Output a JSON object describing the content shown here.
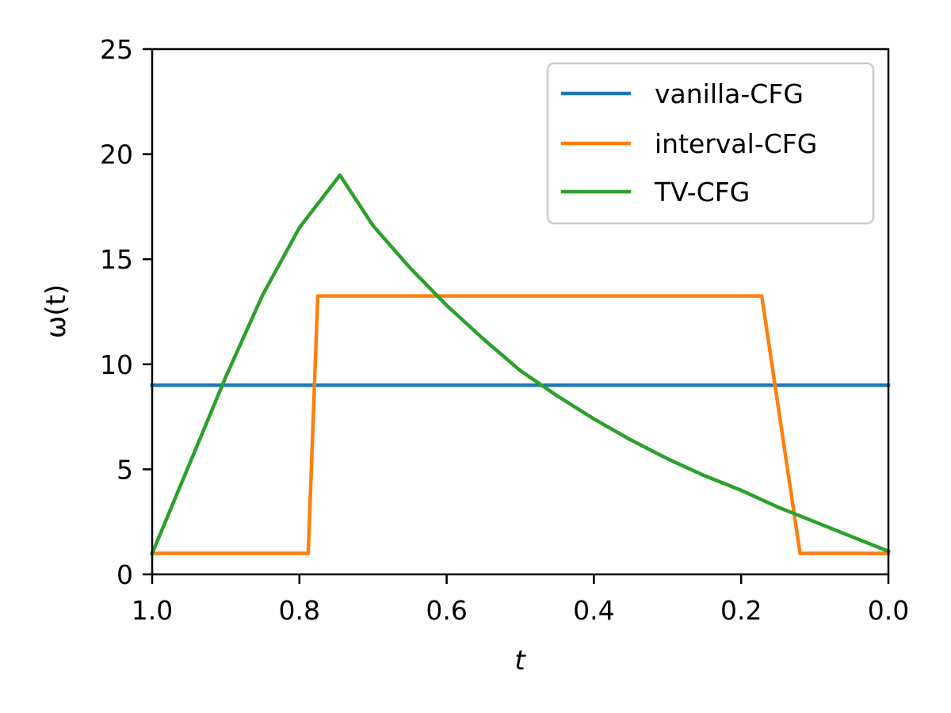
{
  "chart_data": {
    "type": "line",
    "title": "",
    "xlabel": "t",
    "ylabel": "ω(t)",
    "xlim": [
      1.0,
      0.0
    ],
    "ylim": [
      0,
      25
    ],
    "x_inverted": true,
    "xticks": [
      1.0,
      0.8,
      0.6,
      0.4,
      0.2,
      0.0
    ],
    "xtick_labels": [
      "1.0",
      "0.8",
      "0.6",
      "0.4",
      "0.2",
      "0.0"
    ],
    "yticks": [
      0,
      5,
      10,
      15,
      20,
      25
    ],
    "ytick_labels": [
      "0",
      "5",
      "10",
      "15",
      "20",
      "25"
    ],
    "grid": false,
    "legend_position": "top-right",
    "series": [
      {
        "name": "vanilla-CFG",
        "color": "#1f77b4",
        "x": [
          1.0,
          0.0
        ],
        "y": [
          9.0,
          9.0
        ]
      },
      {
        "name": "interval-CFG",
        "color": "#ff7f0e",
        "x": [
          1.0,
          0.788,
          0.775,
          0.172,
          0.12,
          0.0
        ],
        "y": [
          1.0,
          1.0,
          13.25,
          13.25,
          1.0,
          1.0
        ]
      },
      {
        "name": "TV-CFG",
        "color": "#2ca02c",
        "x": [
          1.0,
          0.95,
          0.9,
          0.85,
          0.8,
          0.745,
          0.7,
          0.65,
          0.6,
          0.55,
          0.5,
          0.45,
          0.4,
          0.35,
          0.3,
          0.25,
          0.2,
          0.15,
          0.1,
          0.05,
          0.0
        ],
        "y": [
          1.0,
          5.2,
          9.4,
          13.3,
          16.5,
          19.0,
          16.6,
          14.6,
          12.8,
          11.2,
          9.7,
          8.5,
          7.4,
          6.4,
          5.5,
          4.7,
          4.0,
          3.2,
          2.5,
          1.8,
          1.1
        ]
      }
    ]
  }
}
